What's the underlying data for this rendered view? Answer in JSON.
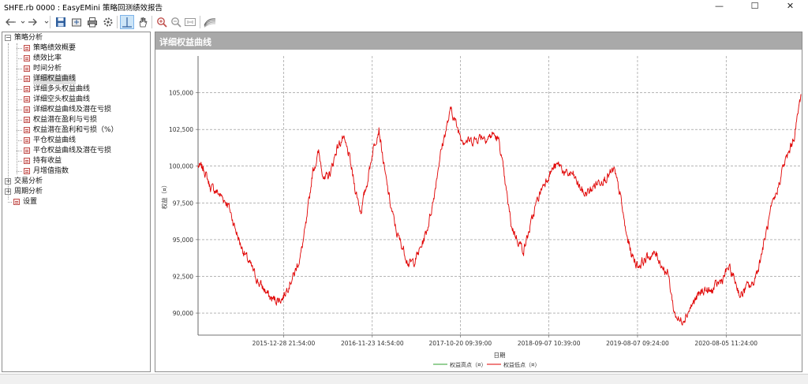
{
  "window": {
    "title": "SHFE.rb 0000 : EasyEMini 策略回测绩效报告",
    "minimize": "—",
    "maximize": "☐",
    "close": "✕"
  },
  "toolbar": {
    "icons": [
      "back-arrow-icon",
      "forward-arrow-icon",
      "save-icon",
      "export-icon",
      "print-icon",
      "settings-icon",
      "crosshair-icon",
      "hand-icon",
      "zoom-in-icon",
      "zoom-out-icon",
      "zoom-fit-icon",
      "chart-style-icon"
    ]
  },
  "tree": {
    "groups": [
      {
        "label": "策略分析",
        "expanded": true,
        "expander": "−"
      },
      {
        "label": "交易分析",
        "expanded": false,
        "expander": "+"
      },
      {
        "label": "周期分析",
        "expanded": false,
        "expander": "+"
      }
    ],
    "strategy_items": [
      "策略绩效概要",
      "绩效比率",
      "时间分析",
      "详细权益曲线",
      "详细多头权益曲线",
      "详细空头权益曲线",
      "详细权益曲线及潜在亏损",
      "权益潜在盈利与亏损",
      "权益潜在盈利和亏损（%）",
      "平仓权益曲线",
      "平仓权益曲线及潜在亏损",
      "持有收益",
      "月增值指数"
    ],
    "selected": "详细权益曲线",
    "settings_label": "设置"
  },
  "panel": {
    "title": "详细权益曲线"
  },
  "chart_data": {
    "type": "line",
    "title": "",
    "xlabel": "日期",
    "ylabel": "权益（¤）",
    "ylim": [
      88500,
      107500
    ],
    "yticks": [
      90000,
      92500,
      95000,
      97500,
      100000,
      102500,
      105000
    ],
    "ytick_labels": [
      "90,000",
      "92,500",
      "95,000",
      "97,500",
      "100,000",
      "102,500",
      "105,000"
    ],
    "xticks": [
      {
        "label": "2015-12-28 21:54:00",
        "pos": 0.142
      },
      {
        "label": "2016-11-23 14:54:00",
        "pos": 0.289
      },
      {
        "label": "2017-10-20 09:39:00",
        "pos": 0.435
      },
      {
        "label": "2018-09-07 10:39:00",
        "pos": 0.582
      },
      {
        "label": "2019-08-07 09:24:00",
        "pos": 0.729
      },
      {
        "label": "2020-08-05 11:24:00",
        "pos": 0.876
      }
    ],
    "grid": true,
    "legend_placement": "bottom-center",
    "series": [
      {
        "name": "权益高点（¤）",
        "color": "#2ca02c",
        "values": []
      },
      {
        "name": "权益低点（¤）",
        "color": "#e00000",
        "x": [
          0.0,
          0.01,
          0.02,
          0.03,
          0.04,
          0.05,
          0.06,
          0.07,
          0.08,
          0.09,
          0.1,
          0.11,
          0.12,
          0.13,
          0.14,
          0.15,
          0.16,
          0.17,
          0.18,
          0.19,
          0.2,
          0.21,
          0.22,
          0.23,
          0.24,
          0.25,
          0.26,
          0.27,
          0.28,
          0.29,
          0.3,
          0.31,
          0.32,
          0.33,
          0.34,
          0.35,
          0.36,
          0.37,
          0.38,
          0.39,
          0.4,
          0.41,
          0.42,
          0.43,
          0.44,
          0.45,
          0.46,
          0.47,
          0.48,
          0.49,
          0.5,
          0.51,
          0.52,
          0.53,
          0.54,
          0.55,
          0.56,
          0.57,
          0.58,
          0.59,
          0.6,
          0.61,
          0.62,
          0.63,
          0.64,
          0.65,
          0.66,
          0.67,
          0.68,
          0.69,
          0.7,
          0.71,
          0.72,
          0.73,
          0.74,
          0.75,
          0.76,
          0.77,
          0.78,
          0.79,
          0.8,
          0.81,
          0.82,
          0.83,
          0.84,
          0.85,
          0.86,
          0.87,
          0.88,
          0.89,
          0.9,
          0.91,
          0.92,
          0.93,
          0.94,
          0.95,
          0.96,
          0.97,
          0.98,
          0.99,
          1.0
        ],
        "values": [
          100000,
          99800,
          98600,
          98300,
          97900,
          97400,
          96000,
          94700,
          93800,
          93000,
          92100,
          91600,
          91000,
          90900,
          91000,
          91900,
          92700,
          93900,
          96200,
          99600,
          100900,
          99000,
          99600,
          101200,
          101900,
          100800,
          98600,
          96900,
          98800,
          101100,
          102600,
          99500,
          97200,
          95400,
          94400,
          93300,
          93600,
          94500,
          95700,
          97600,
          100400,
          102300,
          103900,
          102600,
          101800,
          101700,
          101800,
          102100,
          101900,
          102200,
          101600,
          98600,
          95900,
          95000,
          94300,
          95700,
          97300,
          98500,
          99300,
          99900,
          100100,
          99400,
          99500,
          98800,
          98100,
          98300,
          98800,
          99100,
          99300,
          99700,
          98100,
          95400,
          93900,
          93200,
          93600,
          93900,
          94000,
          93200,
          92600,
          90000,
          89400,
          89900,
          90600,
          91200,
          91600,
          91400,
          91900,
          92300,
          93100,
          92300,
          91100,
          91800,
          91900,
          93200,
          95000,
          96900,
          98200,
          99900,
          100900,
          102200,
          104900
        ]
      }
    ]
  }
}
